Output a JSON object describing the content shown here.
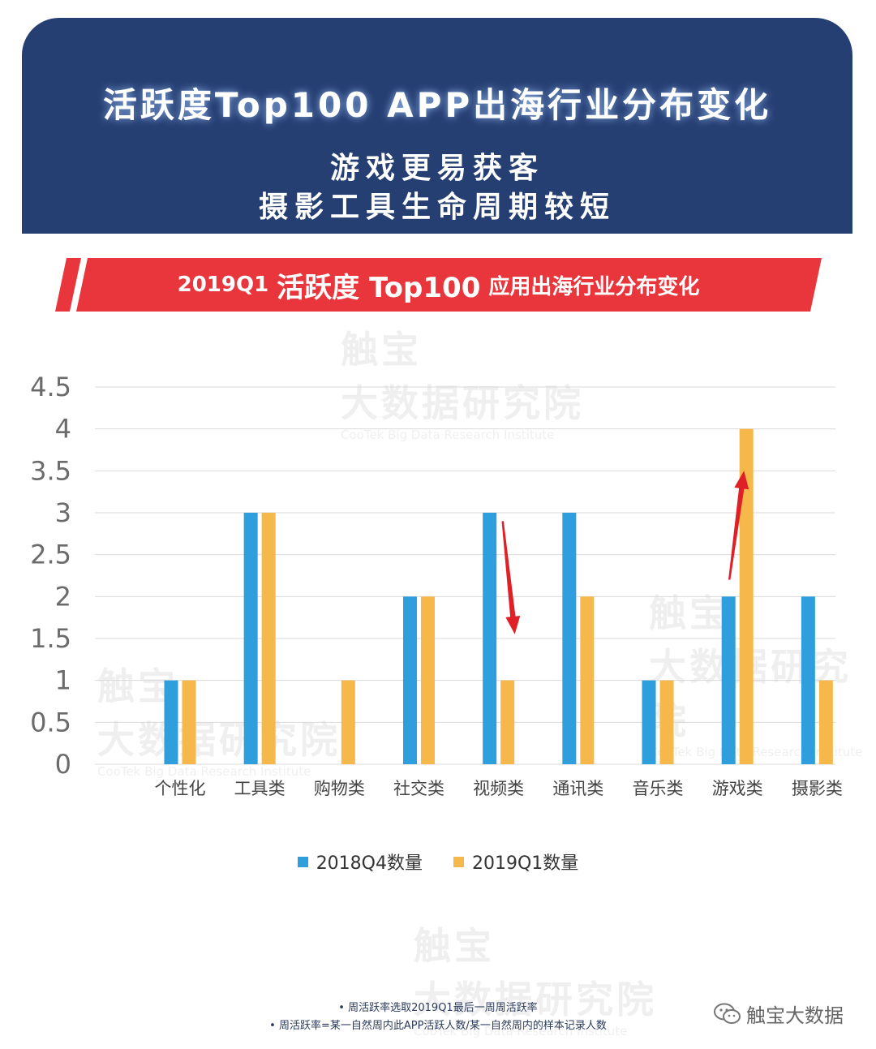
{
  "header": {
    "title": "活跃度Top100 APP出海行业分布变化",
    "subtitle_line1": "游戏更易获客",
    "subtitle_line2": "摄影工具生命周期较短"
  },
  "banner": {
    "prefix": "2019Q1",
    "highlight": "活跃度 Top100",
    "suffix": "应用出海行业分布变化"
  },
  "watermark": {
    "cn_line1": "触宝",
    "cn_line2": "大数据研究院",
    "en": "CooTek Big Data Research Institute"
  },
  "colors": {
    "header_bg": "#263f73",
    "banner_red": "#e8363c",
    "series_2018Q4": "#2e9fdc",
    "series_2019Q1": "#f7b84b",
    "arrow_red": "#e02027"
  },
  "chart_data": {
    "type": "bar",
    "categories": [
      "个性化",
      "工具类",
      "购物类",
      "社交类",
      "视频类",
      "通讯类",
      "音乐类",
      "游戏类",
      "摄影类"
    ],
    "series": [
      {
        "name": "2018Q4数量",
        "values": [
          1,
          3,
          0,
          2,
          3,
          3,
          1,
          2,
          2
        ]
      },
      {
        "name": "2019Q1数量",
        "values": [
          1,
          3,
          1,
          2,
          1,
          2,
          1,
          4,
          1
        ]
      }
    ],
    "ylim": [
      0,
      4.5
    ],
    "yticks": [
      "0",
      "0.5",
      "1",
      "1.5",
      "2",
      "2.5",
      "3",
      "3.5",
      "4",
      "4.5"
    ],
    "grid": true,
    "legend": "bottom",
    "annotations": [
      {
        "type": "arrow",
        "direction": "down",
        "category": "视频类",
        "color": "#e02027"
      },
      {
        "type": "arrow",
        "direction": "up",
        "category": "游戏类",
        "color": "#e02027"
      }
    ]
  },
  "notes": [
    "周活跃率选取2019Q1最后一周周活跃率",
    "周活跃率=某一自然周内此APP活跃人数/某一自然周内的样本记录人数"
  ],
  "brand": {
    "icon": "wechat-icon",
    "name": "触宝大数据"
  }
}
